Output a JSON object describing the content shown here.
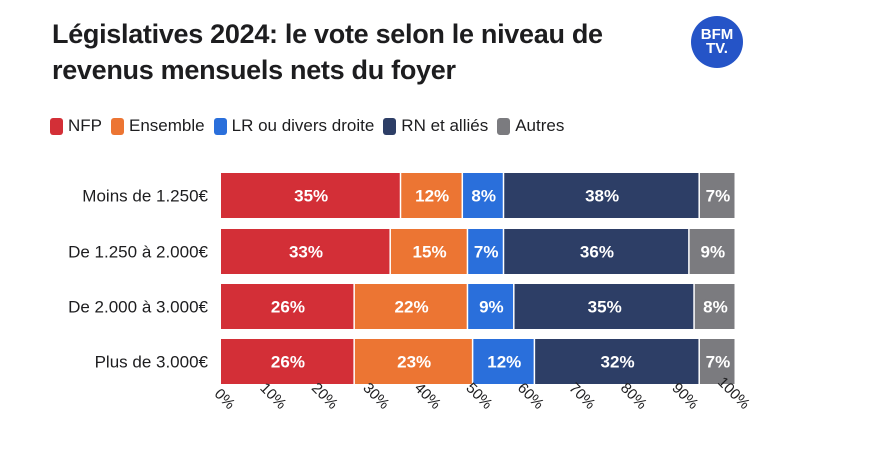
{
  "title": "Législatives 2024: le vote selon le niveau de revenus mensuels nets du foyer",
  "logo": {
    "line1": "BFM",
    "line2": "TV."
  },
  "chart_data": {
    "type": "bar",
    "orientation": "horizontal",
    "stacked": true,
    "categories": [
      "Moins de 1.250€",
      "De 1.250 à 2.000€",
      "De 2.000 à 3.000€",
      "Plus de 3.000€"
    ],
    "series": [
      {
        "name": "NFP",
        "color": "#d32f37",
        "values": [
          35,
          33,
          26,
          26
        ]
      },
      {
        "name": "Ensemble",
        "color": "#ec7533",
        "values": [
          12,
          15,
          22,
          23
        ]
      },
      {
        "name": "LR ou divers droite",
        "color": "#2a6fdb",
        "values": [
          8,
          7,
          9,
          12
        ]
      },
      {
        "name": "RN et alliés",
        "color": "#2d3e66",
        "values": [
          38,
          36,
          35,
          32
        ]
      },
      {
        "name": "Autres",
        "color": "#7b7b7f",
        "values": [
          7,
          9,
          8,
          7
        ]
      }
    ],
    "x_ticks": [
      "0%",
      "10%",
      "20%",
      "30%",
      "40%",
      "50%",
      "60%",
      "70%",
      "80%",
      "90%",
      "100%"
    ],
    "xlim": [
      0,
      100
    ],
    "legend_position": "top-left",
    "grid": false
  }
}
